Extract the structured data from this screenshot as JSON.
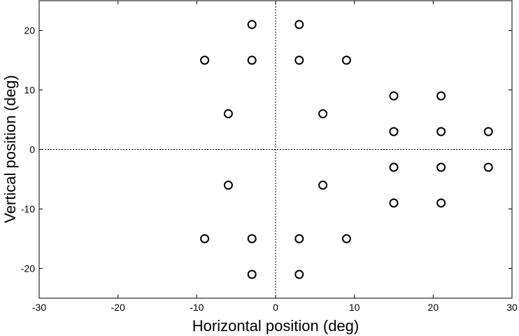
{
  "chart_data": {
    "type": "scatter",
    "title": "",
    "xlabel": "Horizontal position   (deg)",
    "ylabel": "Vertical position   (deg)",
    "xlim": [
      -30,
      30
    ],
    "ylim": [
      -25,
      25
    ],
    "x_ticks": [
      -30,
      -20,
      -10,
      0,
      10,
      20,
      30
    ],
    "y_ticks": [
      -20,
      -10,
      0,
      10,
      20
    ],
    "grid": false,
    "reference_lines": {
      "x": 0,
      "y": 0,
      "style": "dotted"
    },
    "marker": "open-circle",
    "marker_color": "#000000",
    "series": [
      {
        "points": [
          {
            "x": -3,
            "y": 21
          },
          {
            "x": 3,
            "y": 21
          },
          {
            "x": -9,
            "y": 15
          },
          {
            "x": -3,
            "y": 15
          },
          {
            "x": 3,
            "y": 15
          },
          {
            "x": 9,
            "y": 15
          },
          {
            "x": 15,
            "y": 9
          },
          {
            "x": 21,
            "y": 9
          },
          {
            "x": -6,
            "y": 6
          },
          {
            "x": 6,
            "y": 6
          },
          {
            "x": 15,
            "y": 3
          },
          {
            "x": 21,
            "y": 3
          },
          {
            "x": 27,
            "y": 3
          },
          {
            "x": 15,
            "y": -3
          },
          {
            "x": 21,
            "y": -3
          },
          {
            "x": 27,
            "y": -3
          },
          {
            "x": -6,
            "y": -6
          },
          {
            "x": 6,
            "y": -6
          },
          {
            "x": 15,
            "y": -9
          },
          {
            "x": 21,
            "y": -9
          },
          {
            "x": -9,
            "y": -15
          },
          {
            "x": -3,
            "y": -15
          },
          {
            "x": 3,
            "y": -15
          },
          {
            "x": 9,
            "y": -15
          },
          {
            "x": -3,
            "y": -21
          },
          {
            "x": 3,
            "y": -21
          }
        ]
      }
    ]
  }
}
